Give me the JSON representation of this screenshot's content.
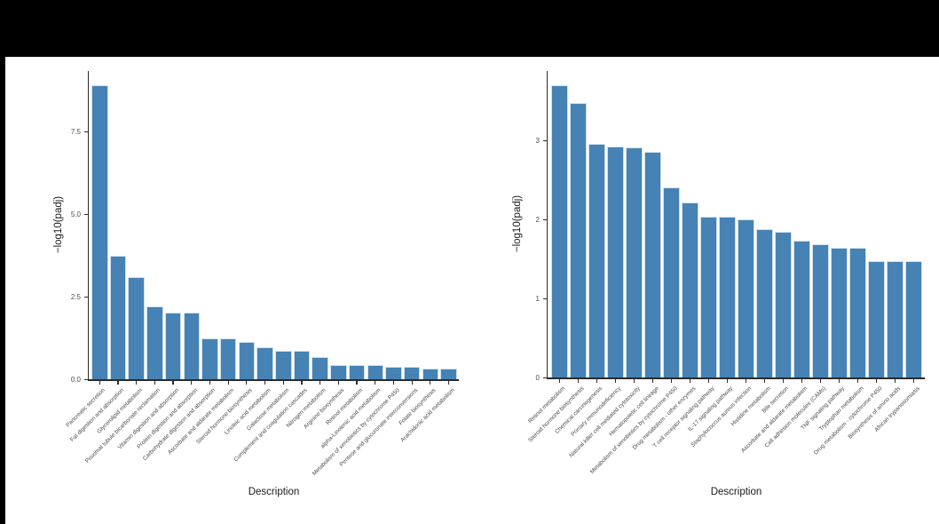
{
  "page": {
    "background": "#ffffff",
    "top_band_color": "#000000",
    "left_band_color": "#000000"
  },
  "chart_data": [
    {
      "type": "bar",
      "panel": "left",
      "title": "",
      "xlabel": "Description",
      "ylabel": "−log10(padj)",
      "ylim": [
        0,
        9.3
      ],
      "grid": false,
      "legend": "none",
      "bar_color": "#4682B4",
      "ytick_labels": [
        "0.0",
        "2.5",
        "5.0",
        "7.5"
      ],
      "ytick_values": [
        0,
        2.5,
        5,
        7.5
      ],
      "categories": [
        "Pancreatic secretion",
        "Fat digestion and absorption",
        "Glycerolipid metabolism",
        "Proximal tubule bicarbonate reclamation",
        "Vitamin digestion and absorption",
        "Protein digestion and absorption",
        "Carbohydrate digestion and absorption",
        "Ascorbate and aldarate metabolism",
        "Steroid hormone biosynthesis",
        "Linoleic acid metabolism",
        "Galactose metabolism",
        "Complement and coagulation cascades",
        "Nitrogen metabolism",
        "Arginine biosynthesis",
        "Retinol metabolism",
        "alpha-Linolenic acid metabolism",
        "Metabolism of xenobiotics by cytochrome P450",
        "Pentose and glucuronate interconversions",
        "Folate biosynthesis",
        "Arachidonic acid metabolism"
      ],
      "values": [
        8.9,
        3.75,
        3.1,
        2.2,
        2.02,
        2.02,
        1.25,
        1.25,
        1.13,
        0.97,
        0.86,
        0.86,
        0.66,
        0.42,
        0.42,
        0.42,
        0.37,
        0.37,
        0.31,
        0.31
      ]
    },
    {
      "type": "bar",
      "panel": "right",
      "title": "",
      "xlabel": "Description",
      "ylabel": "−log10(padj)",
      "ylim": [
        0,
        3.85
      ],
      "grid": false,
      "legend": "none",
      "bar_color": "#4682B4",
      "ytick_labels": [
        "0",
        "1",
        "2",
        "3"
      ],
      "ytick_values": [
        0,
        1,
        2,
        3
      ],
      "categories": [
        "Retinol metabolism",
        "Steroid hormone biosynthesis",
        "Chemical carcinogenesis",
        "Primary immunodeficiency",
        "Natural killer cell mediated cytotoxicity",
        "Hematopoietic cell lineage",
        "Metabolism of xenobiotics by cytochrome P450",
        "Drug metabolism - other enzymes",
        "T cell receptor signaling pathway",
        "IL-17 signaling pathway",
        "Staphylococcus aureus infection",
        "Histidine metabolism",
        "Bile secretion",
        "Ascorbate and aldarate metabolism",
        "Cell adhesion molecules (CAMs)",
        "TNF signaling pathway",
        "Tryptophan metabolism",
        "Drug metabolism - cytochrome P450",
        "Biosynthesis of amino acids",
        "African trypanosomiasis"
      ],
      "values": [
        3.7,
        3.47,
        2.95,
        2.92,
        2.91,
        2.85,
        2.4,
        2.21,
        2.03,
        2.03,
        2.0,
        1.88,
        1.84,
        1.73,
        1.69,
        1.64,
        1.64,
        1.47,
        1.47,
        1.47
      ]
    }
  ]
}
